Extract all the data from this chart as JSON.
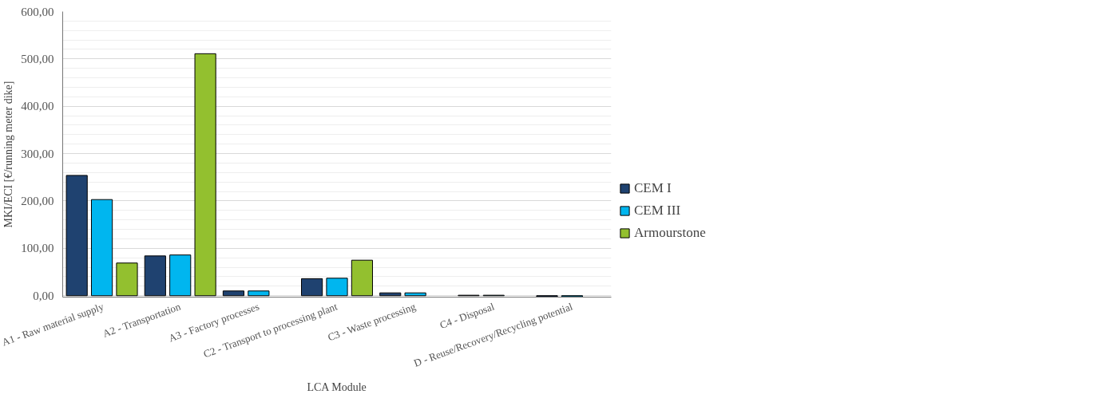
{
  "chart_data": {
    "type": "bar",
    "xlabel": "LCA Module",
    "ylabel": "MKI/ECI [€/running meter dike]",
    "categories": [
      "A1 - Raw material supply",
      "A2 - Transportation",
      "A3 - Factory processes",
      "C2 - Transport to processing plant",
      "C3 - Waste processing",
      "C4 - Disposal",
      "D - Reuse/Recovery/Recycling potential"
    ],
    "series": [
      {
        "name": "CEM I",
        "color": "#1f4270",
        "values": [
          254,
          84,
          10,
          36,
          6,
          1,
          -2
        ]
      },
      {
        "name": "CEM III",
        "color": "#00b6ef",
        "values": [
          203,
          86,
          10,
          37,
          6,
          1,
          -2
        ]
      },
      {
        "name": "Armourstone",
        "color": "#93c02f",
        "values": [
          69,
          511,
          null,
          75,
          null,
          null,
          null
        ]
      }
    ],
    "ylim": [
      -3,
      600
    ],
    "yticks": [
      {
        "value": 0,
        "label": "0,00"
      },
      {
        "value": 100,
        "label": "100,00"
      },
      {
        "value": 200,
        "label": "200,00"
      },
      {
        "value": 300,
        "label": "300,00"
      },
      {
        "value": 400,
        "label": "400,00"
      },
      {
        "value": 500,
        "label": "500,00"
      },
      {
        "value": 600,
        "label": "600,00"
      }
    ],
    "grid": "y",
    "legend": "right"
  }
}
